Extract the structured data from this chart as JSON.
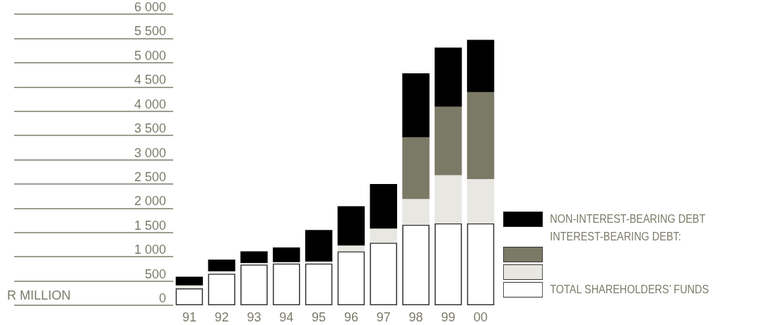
{
  "chart_data": {
    "type": "bar",
    "stacked": true,
    "ylabel": "R MILLION",
    "legend_title": "INTEREST-BEARING DEBT:",
    "categories": [
      "91",
      "92",
      "93",
      "94",
      "95",
      "96",
      "97",
      "98",
      "99",
      "00"
    ],
    "series": [
      {
        "name": "TOTAL SHAREHOLDERS’ FUNDS",
        "color": "#ffffff",
        "values": [
          350,
          650,
          840,
          860,
          860,
          1110,
          1290,
          1660,
          1690,
          1690
        ]
      },
      {
        "color": "#e8e7e2",
        "values": [
          60,
          50,
          30,
          30,
          40,
          120,
          290,
          530,
          990,
          910
        ]
      },
      {
        "color": "#7b7a67",
        "values": [
          0,
          0,
          0,
          0,
          0,
          0,
          0,
          1270,
          1410,
          1790
        ]
      },
      {
        "name": "NON-INTEREST-BEARING DEBT",
        "color": "#000000",
        "values": [
          180,
          240,
          240,
          300,
          650,
          810,
          920,
          1320,
          1220,
          1080
        ]
      }
    ],
    "ylim": [
      0,
      6000
    ],
    "yticks": [
      0,
      {
        "value": 500,
        "label": "500"
      },
      {
        "value": 1000,
        "label": "1 000"
      },
      {
        "value": 1500,
        "label": "1 500"
      },
      {
        "value": 2000,
        "label": "2 000"
      },
      {
        "value": 2500,
        "label": "2 500"
      },
      {
        "value": 3000,
        "label": "3 000"
      },
      {
        "value": 3500,
        "label": "3 500"
      },
      {
        "value": 4000,
        "label": "4 000"
      },
      {
        "value": 4500,
        "label": "4 500"
      },
      {
        "value": 5000,
        "label": "5 000"
      },
      {
        "value": 5500,
        "label": "5 500"
      },
      {
        "value": 6000,
        "label": "6 000"
      }
    ],
    "grid": false,
    "legend": "bottom right"
  }
}
